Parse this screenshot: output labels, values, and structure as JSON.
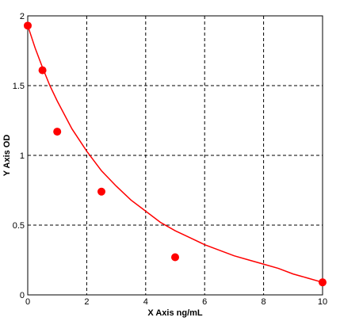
{
  "chart_data": {
    "type": "scatter",
    "xlabel": "X Axis ng/mL",
    "ylabel": "Y Axis OD",
    "xlim": [
      0,
      10
    ],
    "ylim": [
      0,
      2
    ],
    "x_ticks": [
      0,
      2,
      4,
      6,
      8,
      10
    ],
    "y_ticks": [
      0,
      0.5,
      1,
      1.5,
      2
    ],
    "x_tick_labels": [
      "0",
      "2",
      "4",
      "6",
      "8",
      "10"
    ],
    "y_tick_labels": [
      "0",
      "0.5",
      "1",
      "1.5",
      "2"
    ],
    "grid": true,
    "series": [
      {
        "color": "#ff0000",
        "points": [
          {
            "x": 0,
            "y": 1.93
          },
          {
            "x": 0.5,
            "y": 1.61
          },
          {
            "x": 1,
            "y": 1.17
          },
          {
            "x": 2.5,
            "y": 0.74
          },
          {
            "x": 5,
            "y": 0.27
          },
          {
            "x": 10,
            "y": 0.09
          }
        ],
        "fit_curve": {
          "x": [
            0,
            0.25,
            0.5,
            0.75,
            1,
            1.5,
            2,
            2.5,
            3,
            3.5,
            4,
            4.5,
            5,
            5.5,
            6,
            6.5,
            7,
            7.5,
            8,
            8.5,
            9,
            9.5,
            10
          ],
          "y": [
            1.93,
            1.77,
            1.63,
            1.5,
            1.39,
            1.19,
            1.03,
            0.89,
            0.78,
            0.68,
            0.6,
            0.52,
            0.46,
            0.41,
            0.36,
            0.32,
            0.28,
            0.25,
            0.22,
            0.19,
            0.15,
            0.12,
            0.09
          ]
        }
      }
    ]
  }
}
